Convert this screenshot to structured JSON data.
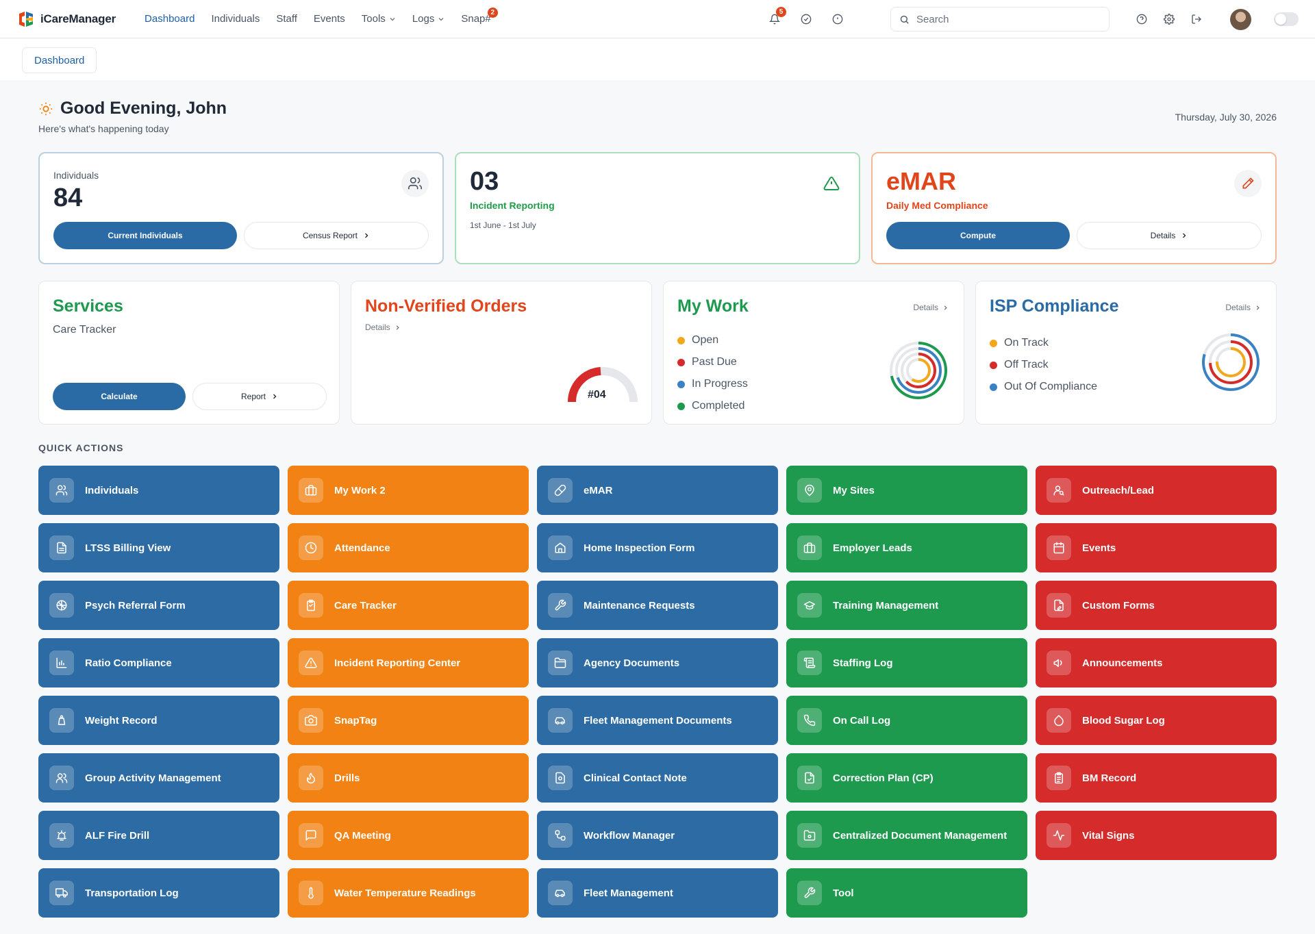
{
  "app": {
    "name": "iCareManager"
  },
  "nav": {
    "items": [
      {
        "label": "Dashboard",
        "active": true
      },
      {
        "label": "Individuals"
      },
      {
        "label": "Staff"
      },
      {
        "label": "Events"
      },
      {
        "label": "Tools",
        "dropdown": true
      },
      {
        "label": "Logs",
        "dropdown": true
      },
      {
        "label": "Snap#",
        "badge": "2"
      }
    ],
    "notifications_badge": "5",
    "search_placeholder": "Search"
  },
  "breadcrumb": {
    "label": "Dashboard"
  },
  "greeting": {
    "title": "Good Evening, John",
    "subtitle": "Here's what's happening today",
    "date": "Thursday, July 30, 2026"
  },
  "cards": {
    "individuals": {
      "label": "Individuals",
      "count": "84",
      "primary_button": "Current Individuals",
      "secondary_button": "Census Report"
    },
    "incident": {
      "count": "03",
      "label": "Incident Reporting",
      "range": "1st June - 1st July"
    },
    "emar": {
      "title": "eMAR",
      "label": "Daily Med Compliance",
      "primary_button": "Compute",
      "secondary_button": "Details"
    }
  },
  "panels": {
    "services": {
      "title": "Services",
      "subtitle": "Care Tracker",
      "primary_button": "Calculate",
      "secondary_button": "Report"
    },
    "orders": {
      "title": "Non-Verified Orders",
      "details": "Details",
      "gauge_label": "#04"
    },
    "my_work": {
      "title": "My Work",
      "details": "Details",
      "legend": [
        {
          "label": "Open",
          "color": "#f2a81d"
        },
        {
          "label": "Past Due",
          "color": "#d52b2b"
        },
        {
          "label": "In Progress",
          "color": "#3b82c4"
        },
        {
          "label": "Completed",
          "color": "#1e9a4f"
        }
      ]
    },
    "isp": {
      "title": "ISP Compliance",
      "details": "Details",
      "legend": [
        {
          "label": "On Track",
          "color": "#f2a81d"
        },
        {
          "label": "Off Track",
          "color": "#d52b2b"
        },
        {
          "label": "Out Of Compliance",
          "color": "#3b82c4"
        }
      ]
    }
  },
  "quick_actions": {
    "title": "QUICK ACTIONS",
    "columns": [
      {
        "color": "blue",
        "items": [
          {
            "label": "Individuals",
            "icon": "users-icon"
          },
          {
            "label": "LTSS Billing View",
            "icon": "file-icon"
          },
          {
            "label": "Psych Referral Form",
            "icon": "brain-icon"
          },
          {
            "label": "Ratio Compliance",
            "icon": "bar-chart-icon"
          },
          {
            "label": "Weight Record",
            "icon": "scale-icon"
          },
          {
            "label": "Group Activity Management",
            "icon": "group-icon"
          },
          {
            "label": "ALF Fire Drill",
            "icon": "alarm-icon"
          },
          {
            "label": "Transportation Log",
            "icon": "truck-icon"
          }
        ]
      },
      {
        "color": "orange",
        "items": [
          {
            "label": "My Work 2",
            "icon": "briefcase-icon"
          },
          {
            "label": "Attendance",
            "icon": "clock-icon"
          },
          {
            "label": "Care Tracker",
            "icon": "clipboard-icon"
          },
          {
            "label": "Incident Reporting Center",
            "icon": "warning-icon"
          },
          {
            "label": "SnapTag",
            "icon": "camera-icon"
          },
          {
            "label": "Drills",
            "icon": "flame-icon"
          },
          {
            "label": "QA Meeting",
            "icon": "chat-icon"
          },
          {
            "label": "Water Temperature Readings",
            "icon": "thermometer-icon"
          }
        ]
      },
      {
        "color": "blue",
        "items": [
          {
            "label": "eMAR",
            "icon": "pill-icon"
          },
          {
            "label": "Home Inspection Form",
            "icon": "home-icon"
          },
          {
            "label": "Maintenance Requests",
            "icon": "wrench-icon"
          },
          {
            "label": "Agency Documents",
            "icon": "folder-icon"
          },
          {
            "label": "Fleet Management Documents",
            "icon": "car-icon"
          },
          {
            "label": "Clinical Contact Note",
            "icon": "contact-note-icon"
          },
          {
            "label": "Workflow Manager",
            "icon": "workflow-icon"
          },
          {
            "label": "Fleet Management",
            "icon": "car-icon"
          }
        ]
      },
      {
        "color": "green",
        "items": [
          {
            "label": "My Sites",
            "icon": "map-pin-icon"
          },
          {
            "label": "Employer Leads",
            "icon": "briefcase-icon"
          },
          {
            "label": "Training Management",
            "icon": "graduation-cap-icon"
          },
          {
            "label": "Staffing Log",
            "icon": "scroll-icon"
          },
          {
            "label": "On Call Log",
            "icon": "phone-icon"
          },
          {
            "label": "Correction Plan (CP)",
            "icon": "file-check-icon"
          },
          {
            "label": "Centralized Document Management",
            "icon": "folder-cog-icon"
          },
          {
            "label": "Tool",
            "icon": "wrench-icon"
          }
        ]
      },
      {
        "color": "red",
        "items": [
          {
            "label": "Outreach/Lead",
            "icon": "user-search-icon"
          },
          {
            "label": "Events",
            "icon": "calendar-icon"
          },
          {
            "label": "Custom Forms",
            "icon": "file-edit-icon"
          },
          {
            "label": "Announcements",
            "icon": "megaphone-icon"
          },
          {
            "label": "Blood Sugar Log",
            "icon": "droplet-icon"
          },
          {
            "label": "BM Record",
            "icon": "clipboard-list-icon"
          },
          {
            "label": "Vital Signs",
            "icon": "activity-icon"
          }
        ]
      }
    ]
  }
}
